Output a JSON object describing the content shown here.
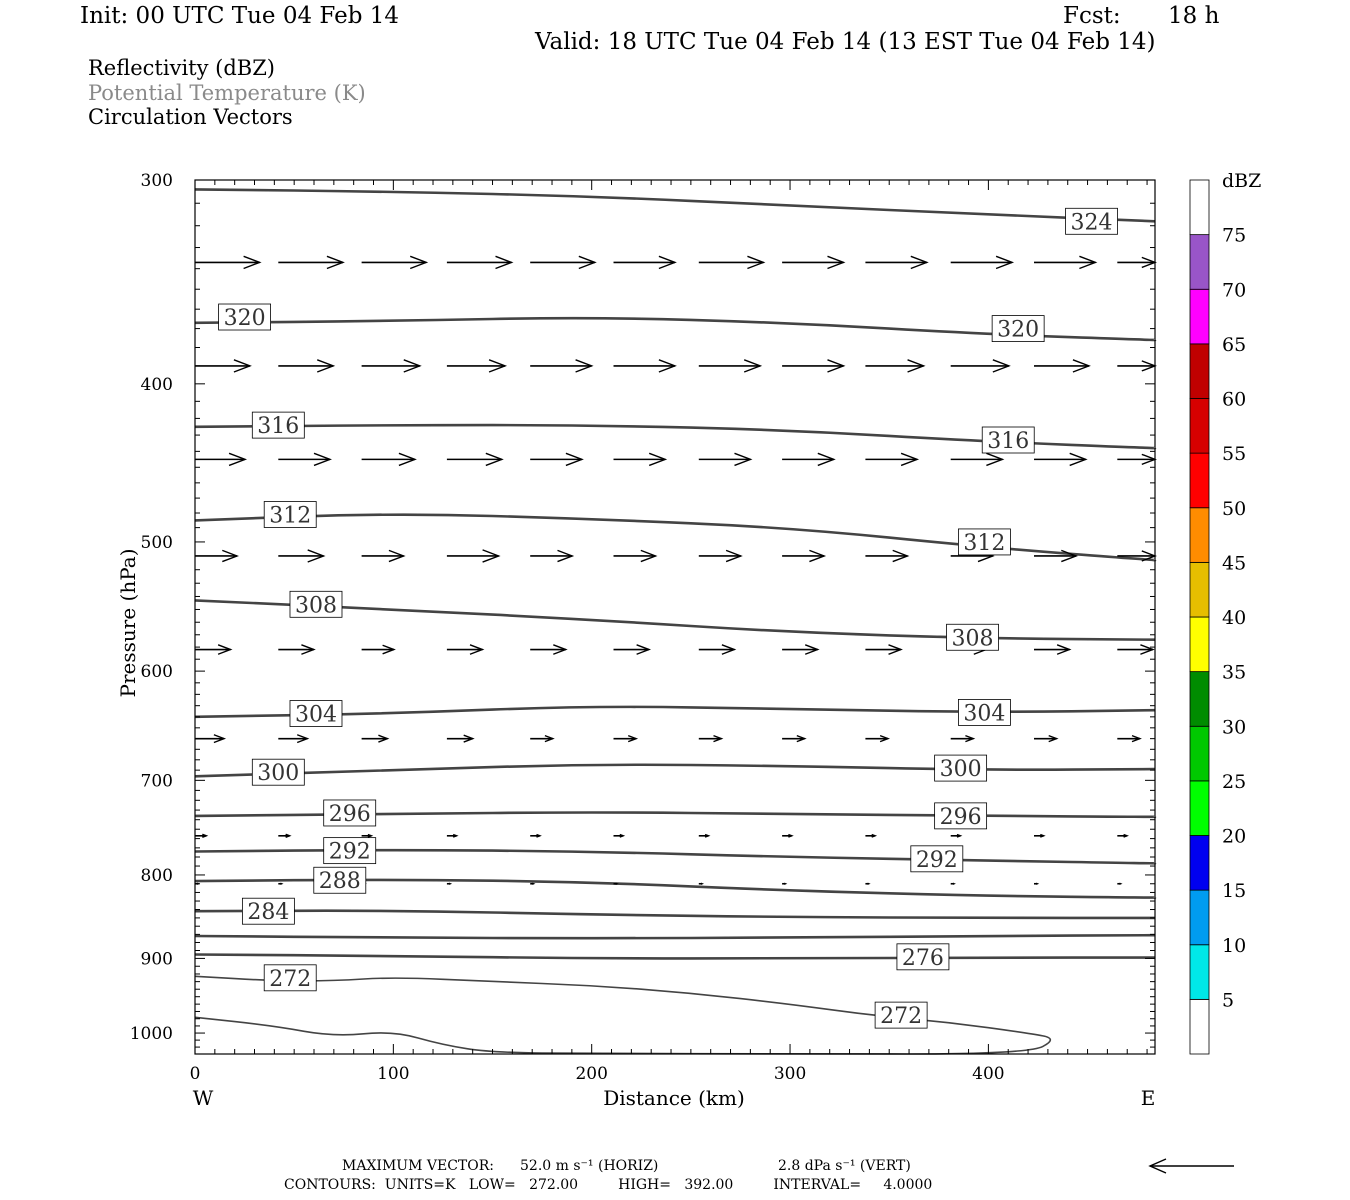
{
  "header": {
    "init": "Init: 00 UTC Tue 04 Feb 14",
    "fcst_label": "Fcst:",
    "fcst_value": "18 h",
    "valid": "Valid: 18 UTC Tue 04 Feb 14 (13 EST Tue 04 Feb 14)"
  },
  "fields": [
    {
      "label": "Reflectivity (dBZ)",
      "color": "#000000"
    },
    {
      "label": "Potential Temperature (K)",
      "color": "#8a8a8a"
    },
    {
      "label": "Circulation Vectors",
      "color": "#000000"
    }
  ],
  "footer": {
    "max_vector_label": "MAXIMUM VECTOR:",
    "horiz": "52.0 m s⁻¹ (HORIZ)",
    "vert": "2.8 dPa s⁻¹ (VERT)",
    "contours": "CONTOURS:  UNITS=K   LOW=   272.00         HIGH=   392.00         INTERVAL=     4.0000"
  },
  "chart_data": {
    "type": "line",
    "xlabel": "Distance (km)",
    "ylabel": "Pressure (hPa)",
    "xlim": [
      0,
      484
    ],
    "ylim": [
      1030,
      300
    ],
    "y_scale": "log",
    "x_ticks": [
      0,
      100,
      200,
      300,
      400
    ],
    "y_ticks": [
      300,
      400,
      500,
      600,
      700,
      800,
      900,
      1000
    ],
    "x_end_labels": {
      "left": "W",
      "right": "E"
    },
    "grid": false,
    "contour_color": "#444444",
    "series": [
      {
        "name": "324",
        "x": [
          0,
          100,
          200,
          300,
          400,
          484
        ],
        "y": [
          304,
          305,
          307,
          311,
          315,
          318
        ],
        "labels": [
          {
            "x": 452,
            "y": 318
          }
        ]
      },
      {
        "name": "320",
        "x": [
          0,
          100,
          200,
          300,
          400,
          484
        ],
        "y": [
          367,
          366,
          364,
          367,
          373,
          376
        ],
        "labels": [
          {
            "x": 25,
            "y": 364
          },
          {
            "x": 415,
            "y": 370
          }
        ]
      },
      {
        "name": "316",
        "x": [
          0,
          100,
          200,
          300,
          400,
          484
        ],
        "y": [
          425,
          424,
          424,
          427,
          434,
          438
        ],
        "labels": [
          {
            "x": 42,
            "y": 424
          },
          {
            "x": 410,
            "y": 433
          }
        ]
      },
      {
        "name": "312",
        "x": [
          0,
          100,
          200,
          300,
          400,
          484
        ],
        "y": [
          485,
          480,
          484,
          490,
          504,
          513
        ],
        "labels": [
          {
            "x": 48,
            "y": 481
          },
          {
            "x": 398,
            "y": 500
          }
        ]
      },
      {
        "name": "308",
        "x": [
          0,
          100,
          200,
          300,
          400,
          484
        ],
        "y": [
          543,
          550,
          558,
          568,
          573,
          574
        ],
        "labels": [
          {
            "x": 61,
            "y": 546
          },
          {
            "x": 392,
            "y": 572
          }
        ]
      },
      {
        "name": "304",
        "x": [
          0,
          100,
          200,
          300,
          400,
          484
        ],
        "y": [
          640,
          637,
          630,
          633,
          636,
          634
        ],
        "labels": [
          {
            "x": 61,
            "y": 637
          },
          {
            "x": 398,
            "y": 636
          }
        ]
      },
      {
        "name": "300",
        "x": [
          0,
          100,
          200,
          300,
          400,
          484
        ],
        "y": [
          696,
          690,
          684,
          686,
          690,
          689
        ],
        "labels": [
          {
            "x": 42,
            "y": 692
          },
          {
            "x": 386,
            "y": 688
          }
        ]
      },
      {
        "name": "296",
        "x": [
          0,
          100,
          200,
          300,
          400,
          484
        ],
        "y": [
          736,
          734,
          732,
          734,
          736,
          737
        ],
        "labels": [
          {
            "x": 78,
            "y": 733
          },
          {
            "x": 386,
            "y": 736
          }
        ]
      },
      {
        "name": "292",
        "x": [
          0,
          100,
          200,
          300,
          400,
          484
        ],
        "y": [
          774,
          772,
          774,
          780,
          784,
          787
        ],
        "labels": [
          {
            "x": 78,
            "y": 773
          },
          {
            "x": 374,
            "y": 782
          }
        ]
      },
      {
        "name": "288",
        "x": [
          0,
          100,
          200,
          300,
          400,
          484
        ],
        "y": [
          807,
          805,
          808,
          818,
          824,
          826
        ],
        "labels": [
          {
            "x": 73,
            "y": 806
          }
        ]
      },
      {
        "name": "284",
        "x": [
          0,
          100,
          200,
          300,
          400,
          484
        ],
        "y": [
          842,
          841,
          846,
          849,
          850,
          850
        ],
        "labels": [
          {
            "x": 37,
            "y": 842
          }
        ]
      },
      {
        "name": "280",
        "x": [
          0,
          100,
          200,
          300,
          400,
          484
        ],
        "y": [
          872,
          874,
          875,
          874,
          872,
          871
        ],
        "labels": []
      },
      {
        "name": "276",
        "x": [
          0,
          100,
          200,
          300,
          400,
          484
        ],
        "y": [
          895,
          897,
          900,
          900,
          899,
          899
        ],
        "labels": [
          {
            "x": 367,
            "y": 898
          }
        ]
      },
      {
        "name": "272",
        "x": [
          0,
          40,
          70,
          100,
          150,
          200,
          250,
          300,
          340,
          380,
          420,
          435,
          420,
          300,
          200,
          150,
          125,
          100,
          70,
          40,
          0
        ],
        "y": [
          923,
          929,
          929,
          924,
          930,
          935,
          945,
          960,
          975,
          985,
          1000,
          1008,
          1030,
          1030,
          1029,
          1028,
          1017,
          997,
          1005,
          990,
          978
        ],
        "labels": [
          {
            "x": 48,
            "y": 925
          },
          {
            "x": 356,
            "y": 975
          }
        ]
      }
    ],
    "vector_max_x": 52.0,
    "vectors": {
      "columns_x": [
        0,
        42,
        84,
        127,
        169,
        211,
        254,
        296,
        338,
        381,
        423,
        465
      ],
      "rows": [
        {
          "p": 337,
          "u": [
            40,
            40,
            40,
            40,
            40,
            38,
            40,
            38,
            38,
            38,
            38,
            38
          ]
        },
        {
          "p": 390,
          "u": [
            34,
            34,
            36,
            36,
            38,
            38,
            38,
            38,
            36,
            36,
            34,
            30
          ]
        },
        {
          "p": 445,
          "u": [
            31,
            32,
            33,
            34,
            32,
            32,
            32,
            32,
            32,
            32,
            32,
            30
          ]
        },
        {
          "p": 510,
          "u": [
            26,
            28,
            26,
            32,
            26,
            26,
            26,
            26,
            26,
            26,
            26,
            24
          ]
        },
        {
          "p": 582,
          "u": [
            22,
            22,
            20,
            22,
            22,
            22,
            22,
            22,
            22,
            22,
            22,
            22
          ]
        },
        {
          "p": 660,
          "u": [
            18,
            18,
            16,
            16,
            14,
            14,
            14,
            14,
            14,
            14,
            14,
            14
          ]
        },
        {
          "p": 757,
          "u": [
            7,
            7,
            6,
            6,
            6,
            6,
            6,
            6,
            6,
            6,
            6,
            6
          ]
        },
        {
          "p": 810,
          "u": [
            2,
            2,
            2,
            2,
            2,
            2,
            2,
            2,
            2,
            2,
            2,
            2
          ]
        }
      ]
    },
    "colorbar": {
      "title": "dBZ",
      "levels": [
        5,
        10,
        15,
        20,
        25,
        30,
        35,
        40,
        45,
        50,
        55,
        60,
        65,
        70,
        75
      ],
      "colors": [
        "#ffffff",
        "#00e8e8",
        "#009cf0",
        "#0000f0",
        "#00ff00",
        "#00c800",
        "#008c00",
        "#ffff00",
        "#e6be00",
        "#ff8c00",
        "#ff0000",
        "#d60000",
        "#c00000",
        "#ff00ff",
        "#9955c8",
        "#ffffff"
      ]
    }
  }
}
